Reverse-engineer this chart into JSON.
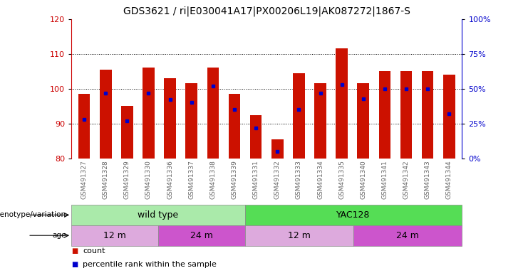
{
  "title": "GDS3621 / ri|E030041A17|PX00206L19|AK087272|1867-S",
  "samples": [
    "GSM491327",
    "GSM491328",
    "GSM491329",
    "GSM491330",
    "GSM491336",
    "GSM491337",
    "GSM491338",
    "GSM491339",
    "GSM491331",
    "GSM491332",
    "GSM491333",
    "GSM491334",
    "GSM491335",
    "GSM491340",
    "GSM491341",
    "GSM491342",
    "GSM491343",
    "GSM491344"
  ],
  "counts": [
    98.5,
    105.5,
    95.0,
    106.0,
    103.0,
    101.5,
    106.0,
    98.5,
    92.5,
    85.5,
    104.5,
    101.5,
    111.5,
    101.5,
    105.0,
    105.0,
    105.0,
    104.0
  ],
  "percentile_ranks": [
    28,
    47,
    27,
    47,
    42,
    40,
    52,
    35,
    22,
    5,
    35,
    47,
    53,
    43,
    50,
    50,
    50,
    32
  ],
  "ylim_left": [
    80,
    120
  ],
  "ylim_right": [
    0,
    100
  ],
  "yticks_left": [
    80,
    90,
    100,
    110,
    120
  ],
  "yticks_right": [
    0,
    25,
    50,
    75,
    100
  ],
  "bar_color": "#cc1100",
  "marker_color": "#0000cc",
  "background_color": "#ffffff",
  "genotype_groups": [
    {
      "label": "wild type",
      "start": 0,
      "end": 8,
      "color": "#aaeaaa"
    },
    {
      "label": "YAC128",
      "start": 8,
      "end": 18,
      "color": "#55dd55"
    }
  ],
  "age_groups": [
    {
      "label": "12 m",
      "start": 0,
      "end": 4,
      "color": "#ddaadd"
    },
    {
      "label": "24 m",
      "start": 4,
      "end": 8,
      "color": "#cc55cc"
    },
    {
      "label": "12 m",
      "start": 8,
      "end": 13,
      "color": "#ddaadd"
    },
    {
      "label": "24 m",
      "start": 13,
      "end": 18,
      "color": "#cc55cc"
    }
  ],
  "left_axis_color": "#cc0000",
  "right_axis_color": "#0000cc",
  "bar_width": 0.55,
  "title_fontsize": 10,
  "tick_fontsize": 7,
  "sample_label_fontsize": 6.5,
  "legend_fontsize": 8,
  "annotation_fontsize": 9,
  "row_label_fontsize": 7.5
}
